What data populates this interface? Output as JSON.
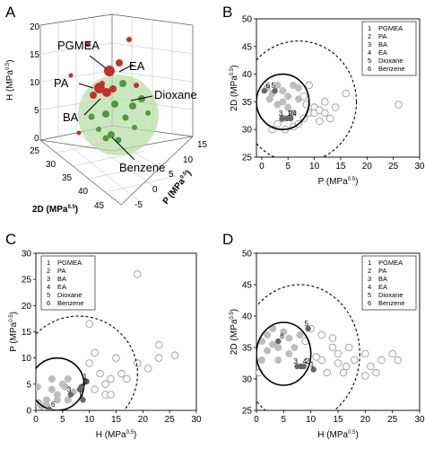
{
  "panels": {
    "A": "A",
    "B": "B",
    "C": "C",
    "D": "D"
  },
  "solvent_legend": [
    {
      "num": "1",
      "name": "PGMEA"
    },
    {
      "num": "2",
      "name": "PA"
    },
    {
      "num": "3",
      "name": "BA"
    },
    {
      "num": "4",
      "name": "EA"
    },
    {
      "num": "5",
      "name": "Dioxane"
    },
    {
      "num": "6",
      "name": "Benzene"
    }
  ],
  "chart_data": [
    {
      "panel": "A",
      "type": "scatter",
      "projection": "3d",
      "axes": {
        "x": {
          "label": "P (MPa",
          "unit_exp": "0.5",
          "ticks": [
            "-5",
            "0",
            "5",
            "10",
            "15"
          ]
        },
        "y": {
          "label": "2D (MPa",
          "unit_exp": "0.5",
          "ticks": [
            "25",
            "30",
            "35",
            "40",
            "45"
          ]
        },
        "z": {
          "label": "H (MPa",
          "unit_exp": "0.5",
          "ticks": [
            "0",
            "5",
            "10",
            "15",
            "20"
          ]
        }
      },
      "annotations": [
        "PGMEA",
        "EA",
        "PA",
        "Dioxane",
        "BA",
        "Benzene"
      ],
      "marker_colors": {
        "red": "#c0302c",
        "green": "#4e9a3a",
        "sphere": "#b9dfa9"
      }
    },
    {
      "panel": "B",
      "type": "scatter",
      "xlabel": "P (MPa",
      "ylabel": "2D (MPa",
      "unit_exp": "0.5",
      "xlim": [
        -1,
        30
      ],
      "ylim": [
        25,
        50
      ],
      "xticks": [
        "0",
        "5",
        "10",
        "15",
        "20",
        "25",
        "30"
      ],
      "yticks": [
        "25",
        "30",
        "35",
        "40",
        "45",
        "50"
      ],
      "legend_position": "top-right",
      "circles": [
        {
          "style": "solid",
          "center": [
            4,
            35
          ],
          "radius": 5
        },
        {
          "style": "dashed",
          "center": [
            7,
            35
          ],
          "radius": 11
        }
      ],
      "labeled_points": [
        {
          "label": "1",
          "x": 5.5,
          "y": 32
        },
        {
          "label": "2",
          "x": 4.8,
          "y": 32
        },
        {
          "label": "3",
          "x": 3.9,
          "y": 32
        },
        {
          "label": "4",
          "x": 5.5,
          "y": 32
        },
        {
          "label": "5",
          "x": 2.5,
          "y": 37
        },
        {
          "label": "6",
          "x": 0.5,
          "y": 37
        }
      ],
      "filled_points": [
        [
          1,
          37.5
        ],
        [
          2,
          36.5
        ],
        [
          3,
          38
        ],
        [
          4,
          37
        ],
        [
          5,
          36
        ],
        [
          6,
          38
        ],
        [
          7,
          37.5
        ],
        [
          4,
          35
        ],
        [
          5,
          34
        ],
        [
          7,
          35.5
        ],
        [
          1.5,
          35.5
        ],
        [
          3,
          34.5
        ],
        [
          6,
          33
        ]
      ],
      "open_points": [
        [
          2,
          30
        ],
        [
          3,
          31
        ],
        [
          4,
          32
        ],
        [
          6,
          30.5
        ],
        [
          7,
          31
        ],
        [
          8,
          32
        ],
        [
          9,
          33
        ],
        [
          10,
          34
        ],
        [
          8,
          36
        ],
        [
          9,
          38
        ],
        [
          12,
          35
        ],
        [
          13,
          32
        ],
        [
          11,
          31.5
        ],
        [
          16,
          36.5
        ],
        [
          26,
          34.5
        ],
        [
          10,
          33
        ],
        [
          14,
          34
        ],
        [
          8.5,
          34.5
        ],
        [
          11,
          33.5
        ],
        [
          12,
          33
        ],
        [
          4.5,
          30
        ]
      ]
    },
    {
      "panel": "C",
      "type": "scatter",
      "xlabel": "H (MPa",
      "ylabel": "P (MPa",
      "unit_exp": "0.5",
      "xlim": [
        0,
        30
      ],
      "ylim": [
        0,
        30
      ],
      "xticks": [
        "0",
        "5",
        "10",
        "15",
        "20",
        "25",
        "30"
      ],
      "yticks": [
        "0",
        "5",
        "10",
        "15",
        "20",
        "25",
        "30"
      ],
      "legend_position": "top-left",
      "circles": [
        {
          "style": "solid",
          "center": [
            4,
            5
          ],
          "radius": 5
        },
        {
          "style": "dashed",
          "center": [
            8,
            7
          ],
          "radius": 11
        }
      ],
      "labeled_points": [
        {
          "label": "1",
          "x": 9.5,
          "y": 5.5
        },
        {
          "label": "2",
          "x": 8.5,
          "y": 4.5
        },
        {
          "label": "3",
          "x": 6.5,
          "y": 3
        },
        {
          "label": "4",
          "x": 8.2,
          "y": 4
        },
        {
          "label": "5",
          "x": 8.8,
          "y": 2
        },
        {
          "label": "6",
          "x": 2.5,
          "y": 0.2
        }
      ],
      "filled_points": [
        [
          1,
          0.8
        ],
        [
          2,
          2
        ],
        [
          3,
          4
        ],
        [
          4,
          3
        ],
        [
          5,
          5
        ],
        [
          6,
          6
        ],
        [
          7,
          3.5
        ],
        [
          4,
          2
        ],
        [
          2,
          1
        ],
        [
          3,
          6
        ],
        [
          6,
          2
        ],
        [
          5.5,
          4.5
        ],
        [
          0.5,
          1.5
        ],
        [
          0.3,
          4.5
        ]
      ],
      "open_points": [
        [
          10,
          16.5
        ],
        [
          11,
          11
        ],
        [
          10,
          9
        ],
        [
          12,
          7
        ],
        [
          13,
          5
        ],
        [
          11,
          4
        ],
        [
          15,
          10
        ],
        [
          16,
          7
        ],
        [
          14,
          6
        ],
        [
          13,
          3
        ],
        [
          14,
          3
        ],
        [
          19,
          26
        ],
        [
          23,
          12.5
        ],
        [
          19,
          9
        ],
        [
          23,
          10
        ],
        [
          26,
          10.5
        ],
        [
          17,
          6
        ],
        [
          21,
          8
        ]
      ]
    },
    {
      "panel": "D",
      "type": "scatter",
      "xlabel": "H (MPa",
      "ylabel": "2D (MPa",
      "unit_exp": "0.5",
      "xlim": [
        0,
        30
      ],
      "ylim": [
        25,
        50
      ],
      "xticks": [
        "0",
        "5",
        "10",
        "15",
        "20",
        "25",
        "30"
      ],
      "yticks": [
        "25",
        "30",
        "35",
        "40",
        "45",
        "50"
      ],
      "legend_position": "top-right",
      "circles": [
        {
          "style": "solid",
          "center": [
            5,
            34
          ],
          "radius": 5
        },
        {
          "style": "dashed",
          "center": [
            8,
            34
          ],
          "radius": 11
        }
      ],
      "labeled_points": [
        {
          "label": "1",
          "x": 10.5,
          "y": 31.5
        },
        {
          "label": "2",
          "x": 8.7,
          "y": 32
        },
        {
          "label": "3",
          "x": 7.5,
          "y": 32
        },
        {
          "label": "4",
          "x": 8.2,
          "y": 32
        },
        {
          "label": "5",
          "x": 9.5,
          "y": 38
        },
        {
          "label": "6",
          "x": 4,
          "y": 36
        }
      ],
      "filled_points": [
        [
          1,
          36
        ],
        [
          2,
          37
        ],
        [
          3,
          38
        ],
        [
          4,
          35
        ],
        [
          5,
          37.5
        ],
        [
          6,
          36.5
        ],
        [
          7,
          35
        ],
        [
          2,
          34.5
        ],
        [
          4,
          33
        ],
        [
          6,
          34
        ],
        [
          1,
          33
        ],
        [
          3,
          35.5
        ],
        [
          8,
          37
        ]
      ],
      "open_points": [
        [
          10,
          38
        ],
        [
          12,
          37
        ],
        [
          14,
          35
        ],
        [
          12,
          33
        ],
        [
          13,
          31
        ],
        [
          15,
          32.5
        ],
        [
          15,
          34
        ],
        [
          17,
          35
        ],
        [
          18,
          33
        ],
        [
          20,
          34
        ],
        [
          21,
          32
        ],
        [
          23,
          33
        ],
        [
          25,
          34
        ],
        [
          26,
          33
        ],
        [
          22,
          31
        ],
        [
          20,
          30.5
        ],
        [
          16,
          31
        ],
        [
          11,
          33.5
        ],
        [
          9,
          36
        ],
        [
          0.5,
          31
        ],
        [
          14,
          36.5
        ],
        [
          16.5,
          32
        ]
      ]
    }
  ]
}
